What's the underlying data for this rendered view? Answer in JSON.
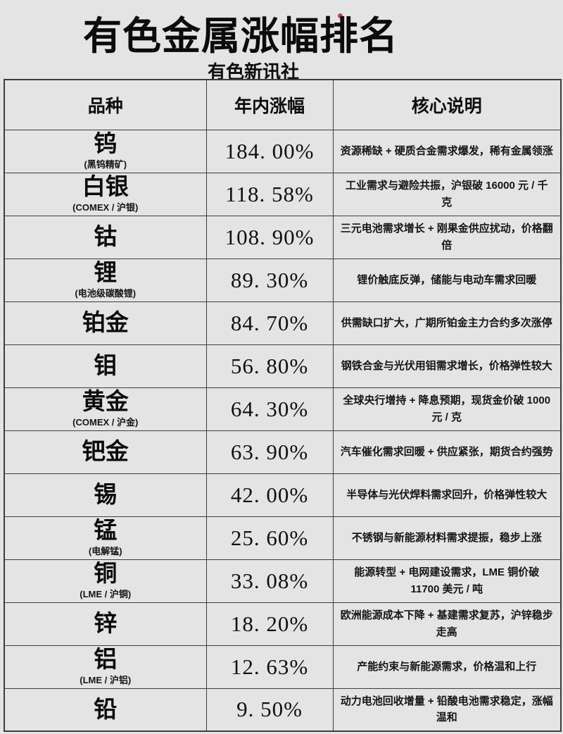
{
  "page": {
    "title": "有色金属涨幅排名",
    "subtitle": "有色新讯社",
    "background_color": "#e4e4e4",
    "border_color": "#3d3d3d",
    "accent_dot_color": "#c1272d"
  },
  "table": {
    "headers": [
      "品种",
      "年内涨幅",
      "核心说明"
    ],
    "rows": [
      {
        "name": "钨",
        "sub": "(黑钨精矿)",
        "change": "184. 00%",
        "note": "资源稀缺 + 硬质合金需求爆发，稀有金属领涨"
      },
      {
        "name": "白银",
        "sub": "(COMEX / 沪银)",
        "change": "118. 58%",
        "note": "工业需求与避险共振，沪银破 16000 元 / 千克"
      },
      {
        "name": "钴",
        "sub": "",
        "change": "108. 90%",
        "note": "三元电池需求增长 + 刚果金供应扰动，价格翻倍"
      },
      {
        "name": "锂",
        "sub": "(电池级碳酸锂)",
        "change": "89. 30%",
        "note": "锂价触底反弹，储能与电动车需求回暖"
      },
      {
        "name": "铂金",
        "sub": "",
        "change": "84. 70%",
        "note": "供需缺口扩大，广期所铂金主力合约多次涨停"
      },
      {
        "name": "钼",
        "sub": "",
        "change": "56. 80%",
        "note": "钢铁合金与光伏用钼需求增长，价格弹性较大"
      },
      {
        "name": "黄金",
        "sub": "(COMEX / 沪金)",
        "change": "64. 30%",
        "note": "全球央行增持 + 降息预期，现货金价破 1000 元 / 克"
      },
      {
        "name": "钯金",
        "sub": "",
        "change": "63. 90%",
        "note": "汽车催化需求回暖 + 供应紧张，期货合约强势"
      },
      {
        "name": "锡",
        "sub": "",
        "change": "42. 00%",
        "note": "半导体与光伏焊料需求回升，价格弹性较大"
      },
      {
        "name": "锰",
        "sub": "(电解锰)",
        "change": "25. 60%",
        "note": "不锈钢与新能源材料需求提振，稳步上涨"
      },
      {
        "name": "铜",
        "sub": "(LME / 沪铜)",
        "change": "33. 08%",
        "note": "能源转型 + 电网建设需求，LME 铜价破 11700 美元 / 吨"
      },
      {
        "name": "锌",
        "sub": "",
        "change": "18. 20%",
        "note": "欧洲能源成本下降 + 基建需求复苏，沪锌稳步走高"
      },
      {
        "name": "铝",
        "sub": "(LME / 沪铝)",
        "change": "12. 63%",
        "note": "产能约束与新能源需求，价格温和上行"
      },
      {
        "name": "铅",
        "sub": "",
        "change": "9. 50%",
        "note": "动力电池回收增量 + 铅酸电池需求稳定，涨幅温和"
      }
    ]
  },
  "chart_data": {
    "type": "table",
    "title": "有色金属涨幅排名",
    "subtitle": "有色新讯社",
    "columns": [
      "品种",
      "年内涨幅",
      "核心说明"
    ],
    "rows": [
      [
        "钨 (黑钨精矿)",
        "184.00%",
        "资源稀缺 + 硬质合金需求爆发，稀有金属领涨"
      ],
      [
        "白银 (COMEX / 沪银)",
        "118.58%",
        "工业需求与避险共振，沪银破 16000 元 / 千克"
      ],
      [
        "钴",
        "108.90%",
        "三元电池需求增长 + 刚果金供应扰动，价格翻倍"
      ],
      [
        "锂 (电池级碳酸锂)",
        "89.30%",
        "锂价触底反弹，储能与电动车需求回暖"
      ],
      [
        "铂金",
        "84.70%",
        "供需缺口扩大，广期所铂金主力合约多次涨停"
      ],
      [
        "钼",
        "56.80%",
        "钢铁合金与光伏用钼需求增长，价格弹性较大"
      ],
      [
        "黄金 (COMEX / 沪金)",
        "64.30%",
        "全球央行增持 + 降息预期，现货金价破 1000 元 / 克"
      ],
      [
        "钯金",
        "63.90%",
        "汽车催化需求回暖 + 供应紧张，期货合约强势"
      ],
      [
        "锡",
        "42.00%",
        "半导体与光伏焊料需求回升，价格弹性较大"
      ],
      [
        "锰 (电解锰)",
        "25.60%",
        "不锈钢与新能源材料需求提振，稳步上涨"
      ],
      [
        "铜 (LME / 沪铜)",
        "33.08%",
        "能源转型 + 电网建设需求，LME 铜价破 11700 美元 / 吨"
      ],
      [
        "锌",
        "18.20%",
        "欧洲能源成本下降 + 基建需求复苏，沪锌稳步走高"
      ],
      [
        "铝 (LME / 沪铝)",
        "12.63%",
        "产能约束与新能源需求，价格温和上行"
      ],
      [
        "铅",
        "9.50%",
        "动力电池回收增量 + 铅酸电池需求稳定，涨幅温和"
      ]
    ],
    "ytd_change_values": [
      184.0,
      118.58,
      108.9,
      89.3,
      84.7,
      56.8,
      64.3,
      63.9,
      42.0,
      25.6,
      33.08,
      18.2,
      12.63,
      9.5
    ]
  }
}
